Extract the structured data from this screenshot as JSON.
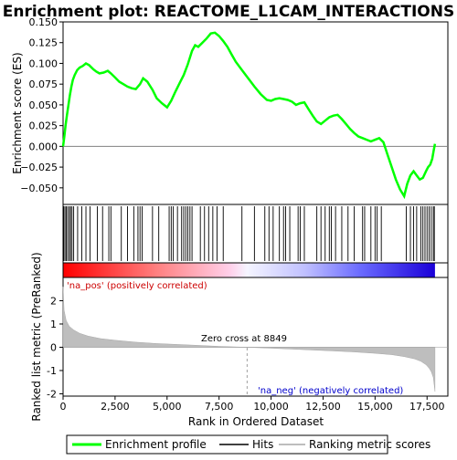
{
  "chart_data": {
    "type": "line",
    "title": "Enrichment plot: REACTOME_L1CAM_INTERACTIONS",
    "top_panel": {
      "ylabel": "Enrichment score (ES)",
      "ylim": [
        -0.07,
        0.15
      ],
      "yticks": [
        -0.05,
        -0.025,
        0.0,
        0.025,
        0.05,
        0.075,
        0.1,
        0.125,
        0.15
      ],
      "ytick_labels": [
        "−0.050",
        "−0.025",
        "0.000",
        "0.025",
        "0.050",
        "0.075",
        "0.100",
        "0.125",
        "0.150"
      ],
      "color": "#00ff00",
      "series": [
        {
          "name": "Enrichment profile",
          "x": [
            0,
            60,
            120,
            190,
            260,
            330,
            400,
            470,
            560,
            680,
            800,
            950,
            1100,
            1250,
            1450,
            1600,
            1750,
            1950,
            2150,
            2300,
            2500,
            2700,
            2900,
            3100,
            3300,
            3500,
            3700,
            3850,
            4050,
            4300,
            4500,
            4750,
            5000,
            5200,
            5400,
            5600,
            5800,
            6000,
            6200,
            6350,
            6500,
            6700,
            6900,
            7100,
            7300,
            7500,
            7700,
            7900,
            8100,
            8300,
            8600,
            8900,
            9200,
            9500,
            9800,
            10000,
            10200,
            10400,
            10600,
            10800,
            11000,
            11200,
            11400,
            11600,
            11800,
            12000,
            12200,
            12400,
            12600,
            12800,
            13000,
            13200,
            13400,
            13600,
            13800,
            14000,
            14200,
            14400,
            14600,
            14800,
            15000,
            15200,
            15400,
            15600,
            15800,
            16000,
            16200,
            16400,
            16550,
            16700,
            16850,
            17000,
            17150,
            17300,
            17450,
            17550,
            17650,
            17750,
            17820,
            17880
          ],
          "y": [
            0.0,
            0.012,
            0.025,
            0.038,
            0.05,
            0.062,
            0.072,
            0.08,
            0.086,
            0.092,
            0.095,
            0.097,
            0.1,
            0.098,
            0.093,
            0.09,
            0.088,
            0.089,
            0.091,
            0.088,
            0.083,
            0.078,
            0.075,
            0.072,
            0.07,
            0.069,
            0.075,
            0.082,
            0.078,
            0.068,
            0.058,
            0.052,
            0.047,
            0.055,
            0.066,
            0.076,
            0.086,
            0.099,
            0.115,
            0.122,
            0.12,
            0.125,
            0.13,
            0.136,
            0.137,
            0.133,
            0.127,
            0.12,
            0.111,
            0.102,
            0.092,
            0.082,
            0.072,
            0.063,
            0.056,
            0.055,
            0.057,
            0.058,
            0.057,
            0.056,
            0.054,
            0.05,
            0.052,
            0.053,
            0.045,
            0.037,
            0.03,
            0.027,
            0.031,
            0.035,
            0.037,
            0.038,
            0.033,
            0.027,
            0.021,
            0.016,
            0.012,
            0.01,
            0.008,
            0.006,
            0.008,
            0.01,
            0.005,
            -0.01,
            -0.025,
            -0.04,
            -0.052,
            -0.06,
            -0.045,
            -0.035,
            -0.03,
            -0.035,
            -0.04,
            -0.038,
            -0.03,
            -0.025,
            -0.022,
            -0.015,
            -0.005,
            0.003
          ]
        }
      ]
    },
    "hits": [
      30,
      90,
      150,
      220,
      300,
      360,
      430,
      510,
      700,
      900,
      1100,
      1300,
      1650,
      1900,
      2200,
      2300,
      2800,
      3100,
      3400,
      3600,
      3700,
      3800,
      4300,
      4600,
      5100,
      5200,
      5300,
      5500,
      5700,
      5800,
      5900,
      6000,
      6100,
      6200,
      6600,
      6800,
      7000,
      7200,
      7400,
      7700,
      8600,
      9200,
      9700,
      9900,
      10100,
      10400,
      10600,
      10700,
      10900,
      11300,
      11400,
      11600,
      12200,
      12400,
      12600,
      12800,
      12900,
      13100,
      13400,
      13700,
      14000,
      14400,
      14500,
      14800,
      15000,
      15100,
      15300,
      16500,
      16700,
      16850,
      17000,
      17200,
      17300,
      17400,
      17500,
      17600,
      17700,
      17800,
      17850
    ],
    "bottom_panel": {
      "ylabel": "Ranked list metric (PreRanked)",
      "xlabel": "Rank in Ordered Dataset",
      "ylim": [
        -2.1,
        3.0
      ],
      "yticks": [
        -2,
        -1,
        0,
        1,
        2
      ],
      "xlim": [
        0,
        18500
      ],
      "xticks": [
        0,
        2500,
        5000,
        7500,
        10000,
        12500,
        15000,
        17500
      ],
      "xtick_labels": [
        "0",
        "2,500",
        "5,000",
        "7,500",
        "10,000",
        "12,500",
        "15,000",
        "17,500"
      ],
      "metric_curve": {
        "x": [
          0,
          50,
          150,
          300,
          500,
          800,
          1200,
          1800,
          2500,
          3500,
          4500,
          5500,
          6500,
          7500,
          8849,
          10000,
          11000,
          12000,
          13000,
          14000,
          15000,
          15800,
          16400,
          16900,
          17200,
          17450,
          17600,
          17700,
          17800,
          17880
        ],
        "y": [
          2.6,
          1.6,
          1.15,
          0.9,
          0.75,
          0.6,
          0.48,
          0.37,
          0.3,
          0.22,
          0.16,
          0.12,
          0.08,
          0.04,
          0.0,
          -0.04,
          -0.08,
          -0.12,
          -0.16,
          -0.2,
          -0.26,
          -0.32,
          -0.4,
          -0.5,
          -0.6,
          -0.75,
          -0.9,
          -1.05,
          -1.3,
          -1.9
        ]
      },
      "zero_cross_label": "Zero cross at 8849",
      "zero_cross": 8849,
      "pos_label": "'na_pos' (positively correlated)",
      "neg_label": "'na_neg' (negatively correlated)"
    },
    "x_max": 17880,
    "legend": {
      "position": "bottom",
      "items": [
        {
          "label": "Enrichment profile",
          "color": "#00ff00"
        },
        {
          "label": "Hits",
          "color": "#000000"
        },
        {
          "label": "Ranking metric scores",
          "color": "#bebebe"
        }
      ]
    }
  }
}
